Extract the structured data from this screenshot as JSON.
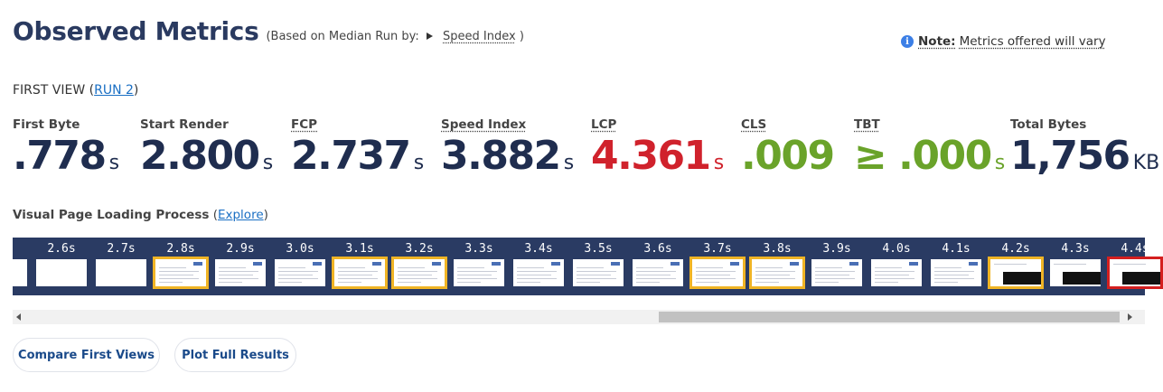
{
  "header": {
    "title": "Observed Metrics",
    "subtitle_prefix": "(Based on Median Run by:",
    "subtitle_link": "Speed Index",
    "subtitle_suffix": ")"
  },
  "note": {
    "icon": "info-icon",
    "label": "Note:",
    "text": "Metrics offered will vary"
  },
  "first_view": {
    "label": "FIRST VIEW (",
    "run_link": "RUN 2",
    "suffix": ")"
  },
  "metrics": [
    {
      "label": "First Byte",
      "value": ".778",
      "unit": "s",
      "color": "#1f2d4f"
    },
    {
      "label": "Start Render",
      "value": "2.800",
      "unit": "s",
      "color": "#1f2d4f"
    },
    {
      "label": "FCP",
      "value": "2.737",
      "unit": "s",
      "color": "#1f2d4f"
    },
    {
      "label": "Speed Index",
      "value": "3.882",
      "unit": "s",
      "color": "#1f2d4f"
    },
    {
      "label": "LCP",
      "value": "4.361",
      "unit": "s",
      "color": "#d0222c"
    },
    {
      "label": "CLS",
      "value": ".009",
      "unit": "",
      "color": "#6aa32a"
    },
    {
      "label": "TBT",
      "value": "≥ .000",
      "unit": "s",
      "color": "#6aa32a"
    },
    {
      "label": "Total Bytes",
      "value": "1,756",
      "unit": "KB",
      "color": "#1f2d4f"
    }
  ],
  "visual_loading": {
    "label": "Visual Page Loading Process",
    "open": " (",
    "link": "Explore",
    "close": ")"
  },
  "filmstrip": {
    "frames": [
      {
        "time": "",
        "state": "blank",
        "highlight": "none"
      },
      {
        "time": "2.6s",
        "state": "blank",
        "highlight": "none"
      },
      {
        "time": "2.7s",
        "state": "blank",
        "highlight": "none"
      },
      {
        "time": "2.8s",
        "state": "content",
        "highlight": "yellow"
      },
      {
        "time": "2.9s",
        "state": "content",
        "highlight": "none"
      },
      {
        "time": "3.0s",
        "state": "content",
        "highlight": "none"
      },
      {
        "time": "3.1s",
        "state": "content",
        "highlight": "yellow"
      },
      {
        "time": "3.2s",
        "state": "content",
        "highlight": "yellow"
      },
      {
        "time": "3.3s",
        "state": "content",
        "highlight": "none"
      },
      {
        "time": "3.4s",
        "state": "content",
        "highlight": "none"
      },
      {
        "time": "3.5s",
        "state": "content",
        "highlight": "none"
      },
      {
        "time": "3.6s",
        "state": "content",
        "highlight": "none"
      },
      {
        "time": "3.7s",
        "state": "content",
        "highlight": "yellow"
      },
      {
        "time": "3.8s",
        "state": "content",
        "highlight": "yellow"
      },
      {
        "time": "3.9s",
        "state": "content",
        "highlight": "none"
      },
      {
        "time": "4.0s",
        "state": "content",
        "highlight": "none"
      },
      {
        "time": "4.1s",
        "state": "content",
        "highlight": "none"
      },
      {
        "time": "4.2s",
        "state": "dark",
        "highlight": "yellow"
      },
      {
        "time": "4.3s",
        "state": "dark",
        "highlight": "none"
      },
      {
        "time": "4.4s",
        "state": "dark",
        "highlight": "red"
      }
    ]
  },
  "buttons": {
    "compare": "Compare First Views",
    "plot": "Plot Full Results"
  }
}
